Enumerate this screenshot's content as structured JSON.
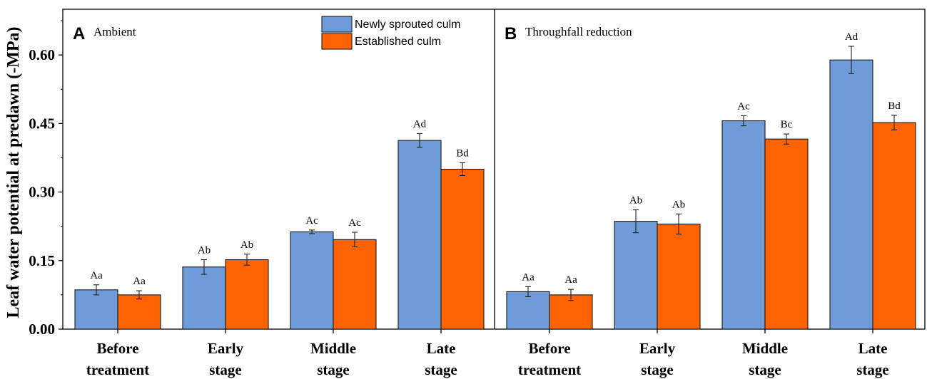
{
  "chart_data": {
    "type": "bar",
    "ylabel": "Leaf water potential at predawn (-MPa)",
    "ylim": [
      0,
      0.7
    ],
    "yticks": [
      0.0,
      0.15,
      0.3,
      0.45,
      0.6
    ],
    "ytick_labels": [
      "0.00",
      "0.15",
      "0.30",
      "0.45",
      "0.60"
    ],
    "categories": [
      [
        "Before",
        "treatment"
      ],
      [
        "Early",
        "stage"
      ],
      [
        "Middle",
        "stage"
      ],
      [
        "Late",
        "stage"
      ]
    ],
    "legend": {
      "placement": "top-center of panel A",
      "entries": [
        {
          "name": "Newly sprouted culm",
          "color": "#6F9BD8"
        },
        {
          "name": "Established  culm",
          "color": "#FF6200"
        }
      ]
    },
    "panels": [
      {
        "letter": "A",
        "title": "Ambient",
        "series": [
          {
            "name": "Newly sprouted culm",
            "values": [
              0.086,
              0.136,
              0.213,
              0.413
            ],
            "errors": [
              0.011,
              0.016,
              0.004,
              0.015
            ],
            "labels": [
              "Aa",
              "Ab",
              "Ac",
              "Ad"
            ]
          },
          {
            "name": "Established  culm",
            "values": [
              0.075,
              0.152,
              0.196,
              0.35
            ],
            "errors": [
              0.009,
              0.012,
              0.016,
              0.014
            ],
            "labels": [
              "Aa",
              "Ab",
              "Ac",
              "Bd"
            ]
          }
        ]
      },
      {
        "letter": "B",
        "title": "Throughfall reduction",
        "series": [
          {
            "name": "Newly sprouted culm",
            "values": [
              0.082,
              0.236,
              0.456,
              0.589
            ],
            "errors": [
              0.011,
              0.025,
              0.011,
              0.03
            ],
            "labels": [
              "Aa",
              "Ab",
              "Ac",
              "Ad"
            ]
          },
          {
            "name": "Established  culm",
            "values": [
              0.075,
              0.23,
              0.416,
              0.452
            ],
            "errors": [
              0.012,
              0.022,
              0.011,
              0.016
            ],
            "labels": [
              "Aa",
              "Ab",
              "Bc",
              "Bd"
            ]
          }
        ]
      }
    ]
  }
}
